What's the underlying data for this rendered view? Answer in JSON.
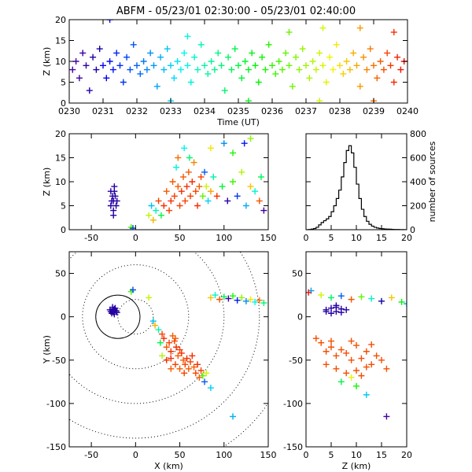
{
  "figure": {
    "title": "ABFM - 05/23/01 02:30:00 - 05/23/01 02:40:00"
  },
  "chart_data": [
    {
      "panel": "time-height",
      "type": "scatter",
      "marker": "+",
      "xlabel": "Time (UT)",
      "ylabel": "Z (km)",
      "xlim": [
        0,
        10
      ],
      "ylim": [
        0,
        20
      ],
      "x_tick_labels": [
        "0230",
        "0231",
        "0232",
        "0233",
        "0234",
        "0235",
        "0236",
        "0237",
        "0238",
        "0239",
        "0240"
      ],
      "y_ticks": [
        0,
        5,
        10,
        15,
        20
      ],
      "color_scale": "time: purple (02:30) to red (02:40)",
      "x_unit": "minutes after 02:30 UT",
      "points": [
        [
          0.1,
          8
        ],
        [
          0.2,
          10
        ],
        [
          0.3,
          6
        ],
        [
          0.4,
          12
        ],
        [
          0.5,
          9
        ],
        [
          0.6,
          3
        ],
        [
          0.7,
          11
        ],
        [
          0.8,
          8
        ],
        [
          0.9,
          13
        ],
        [
          1.0,
          9
        ],
        [
          1.1,
          6
        ],
        [
          1.2,
          10
        ],
        [
          1.3,
          8
        ],
        [
          1.4,
          12
        ],
        [
          1.5,
          9
        ],
        [
          1.6,
          5
        ],
        [
          1.7,
          11
        ],
        [
          1.8,
          8
        ],
        [
          1.9,
          14
        ],
        [
          2.0,
          9
        ],
        [
          2.1,
          7
        ],
        [
          2.2,
          10
        ],
        [
          2.3,
          8
        ],
        [
          2.4,
          12
        ],
        [
          2.5,
          9
        ],
        [
          2.6,
          4
        ],
        [
          2.7,
          11
        ],
        [
          2.8,
          8
        ],
        [
          2.9,
          13
        ],
        [
          3.0,
          9
        ],
        [
          3.1,
          6
        ],
        [
          3.2,
          10
        ],
        [
          3.3,
          8
        ],
        [
          3.4,
          12
        ],
        [
          3.5,
          9
        ],
        [
          3.6,
          5
        ],
        [
          3.7,
          11
        ],
        [
          3.8,
          8
        ],
        [
          3.9,
          14
        ],
        [
          4.0,
          9
        ],
        [
          4.1,
          7
        ],
        [
          4.2,
          10
        ],
        [
          4.3,
          8
        ],
        [
          4.4,
          12
        ],
        [
          4.5,
          9
        ],
        [
          4.6,
          3
        ],
        [
          4.7,
          11
        ],
        [
          4.8,
          8
        ],
        [
          4.9,
          13
        ],
        [
          5.0,
          9
        ],
        [
          5.1,
          6
        ],
        [
          5.2,
          10
        ],
        [
          5.3,
          8
        ],
        [
          5.4,
          12
        ],
        [
          5.5,
          9
        ],
        [
          5.6,
          5
        ],
        [
          5.7,
          11
        ],
        [
          5.8,
          8
        ],
        [
          5.9,
          14
        ],
        [
          6.0,
          9
        ],
        [
          6.1,
          7
        ],
        [
          6.2,
          10
        ],
        [
          6.3,
          8
        ],
        [
          6.4,
          12
        ],
        [
          6.5,
          9
        ],
        [
          6.6,
          4
        ],
        [
          6.7,
          11
        ],
        [
          6.8,
          8
        ],
        [
          6.9,
          13
        ],
        [
          7.0,
          9
        ],
        [
          7.1,
          6
        ],
        [
          7.2,
          10
        ],
        [
          7.3,
          8
        ],
        [
          7.4,
          12
        ],
        [
          7.5,
          9
        ],
        [
          7.6,
          5
        ],
        [
          7.7,
          11
        ],
        [
          7.8,
          8
        ],
        [
          7.9,
          14
        ],
        [
          8.0,
          9
        ],
        [
          8.1,
          7
        ],
        [
          8.2,
          10
        ],
        [
          8.3,
          8
        ],
        [
          8.4,
          12
        ],
        [
          8.5,
          9
        ],
        [
          8.6,
          4
        ],
        [
          8.7,
          11
        ],
        [
          8.8,
          8
        ],
        [
          8.9,
          13
        ],
        [
          9.0,
          9
        ],
        [
          9.1,
          6
        ],
        [
          9.2,
          10
        ],
        [
          9.3,
          8
        ],
        [
          9.4,
          12
        ],
        [
          9.5,
          9
        ],
        [
          9.6,
          5
        ],
        [
          9.7,
          11
        ],
        [
          9.8,
          8
        ],
        [
          9.9,
          10
        ],
        [
          1.2,
          20
        ],
        [
          3.5,
          16
        ],
        [
          6.5,
          17
        ],
        [
          7.5,
          18
        ],
        [
          8.6,
          18
        ],
        [
          9.6,
          17
        ],
        [
          3.0,
          0.5
        ],
        [
          5.3,
          0.5
        ],
        [
          7.4,
          0.5
        ],
        [
          9.0,
          0.5
        ]
      ]
    },
    {
      "panel": "xz",
      "type": "scatter",
      "marker": "+",
      "xlabel": "",
      "ylabel": "Z (km)",
      "xlim": [
        -75,
        150
      ],
      "ylim": [
        0,
        20
      ],
      "x_ticks": [
        -50,
        0,
        50,
        100,
        150
      ],
      "y_ticks": [
        0,
        5,
        10,
        15,
        20
      ],
      "points": [
        [
          -28,
          5
        ],
        [
          -26,
          7
        ],
        [
          -25,
          6
        ],
        [
          -24,
          8
        ],
        [
          -22,
          5
        ],
        [
          -27,
          6
        ],
        [
          -23,
          7
        ],
        [
          -25,
          4
        ],
        [
          -24,
          9
        ],
        [
          -28,
          8
        ],
        [
          -21,
          6
        ],
        [
          -25,
          3
        ],
        [
          -5,
          0.5
        ],
        [
          -3,
          0.3
        ],
        [
          15,
          3
        ],
        [
          18,
          5
        ],
        [
          20,
          2
        ],
        [
          23,
          4
        ],
        [
          26,
          6
        ],
        [
          29,
          3
        ],
        [
          32,
          5
        ],
        [
          35,
          8
        ],
        [
          38,
          4
        ],
        [
          40,
          6
        ],
        [
          42,
          10
        ],
        [
          44,
          7
        ],
        [
          46,
          13
        ],
        [
          48,
          9
        ],
        [
          50,
          5
        ],
        [
          52,
          8
        ],
        [
          54,
          11
        ],
        [
          56,
          6
        ],
        [
          58,
          9
        ],
        [
          60,
          12
        ],
        [
          62,
          7
        ],
        [
          64,
          10
        ],
        [
          66,
          14
        ],
        [
          68,
          8
        ],
        [
          70,
          5
        ],
        [
          72,
          9
        ],
        [
          74,
          11
        ],
        [
          76,
          7
        ],
        [
          78,
          12
        ],
        [
          80,
          9
        ],
        [
          82,
          6
        ],
        [
          85,
          8
        ],
        [
          88,
          11
        ],
        [
          92,
          7
        ],
        [
          98,
          9
        ],
        [
          104,
          6
        ],
        [
          110,
          10
        ],
        [
          115,
          7
        ],
        [
          120,
          12
        ],
        [
          125,
          5
        ],
        [
          130,
          9
        ],
        [
          135,
          8
        ],
        [
          140,
          6
        ],
        [
          142,
          11
        ],
        [
          145,
          4
        ],
        [
          110,
          16
        ],
        [
          123,
          18
        ],
        [
          130,
          19
        ],
        [
          100,
          18
        ],
        [
          85,
          17
        ],
        [
          55,
          17
        ],
        [
          48,
          15
        ],
        [
          61,
          15
        ]
      ]
    },
    {
      "panel": "histogram",
      "type": "bar",
      "xlabel": "",
      "ylabel": "number of sources",
      "xlim": [
        0,
        20
      ],
      "ylim": [
        0,
        800
      ],
      "x_ticks": [
        0,
        5,
        10,
        15,
        20
      ],
      "y_ticks": [
        0,
        200,
        400,
        600,
        800
      ],
      "bin_width": 0.5,
      "values": [
        0,
        2,
        5,
        10,
        20,
        40,
        60,
        75,
        90,
        110,
        150,
        200,
        260,
        330,
        440,
        560,
        660,
        700,
        640,
        520,
        380,
        260,
        170,
        110,
        70,
        45,
        30,
        20,
        14,
        10,
        8,
        6,
        5,
        4,
        3,
        2,
        2,
        1,
        1,
        0
      ]
    },
    {
      "panel": "xy",
      "type": "scatter",
      "marker": "+",
      "xlabel": "X (km)",
      "ylabel": "Y (km)",
      "xlim": [
        -75,
        150
      ],
      "ylim": [
        -150,
        75
      ],
      "x_ticks": [
        -50,
        0,
        50,
        100,
        150
      ],
      "y_ticks": [
        -150,
        -100,
        -50,
        0,
        50
      ],
      "range_rings": [
        {
          "center": [
            0,
            0
          ],
          "radii": [
            20,
            60,
            100,
            140,
            180
          ],
          "style": "dotted"
        },
        {
          "center": [
            -20,
            0
          ],
          "radii": [
            25
          ],
          "style": "solid"
        }
      ],
      "points": [
        [
          -28,
          6
        ],
        [
          -26,
          8
        ],
        [
          -25,
          5
        ],
        [
          -24,
          9
        ],
        [
          -22,
          7
        ],
        [
          -27,
          4
        ],
        [
          -23,
          10
        ],
        [
          -25,
          6
        ],
        [
          -21,
          5
        ],
        [
          -29,
          8
        ],
        [
          -24,
          3
        ],
        [
          -26,
          11
        ],
        [
          -5,
          29
        ],
        [
          -3,
          31
        ],
        [
          15,
          22
        ],
        [
          20,
          -5
        ],
        [
          22,
          -10
        ],
        [
          26,
          -15
        ],
        [
          30,
          -20
        ],
        [
          28,
          -30
        ],
        [
          32,
          -25
        ],
        [
          35,
          -35
        ],
        [
          38,
          -30
        ],
        [
          40,
          -40
        ],
        [
          42,
          -22
        ],
        [
          44,
          -28
        ],
        [
          46,
          -35
        ],
        [
          48,
          -45
        ],
        [
          50,
          -38
        ],
        [
          52,
          -42
        ],
        [
          54,
          -50
        ],
        [
          56,
          -55
        ],
        [
          58,
          -48
        ],
        [
          60,
          -60
        ],
        [
          62,
          -52
        ],
        [
          64,
          -45
        ],
        [
          66,
          -58
        ],
        [
          68,
          -65
        ],
        [
          70,
          -55
        ],
        [
          72,
          -70
        ],
        [
          74,
          -62
        ],
        [
          76,
          -68
        ],
        [
          78,
          -75
        ],
        [
          80,
          -65
        ],
        [
          85,
          -82
        ],
        [
          40,
          -60
        ],
        [
          45,
          -55
        ],
        [
          35,
          -50
        ],
        [
          50,
          -60
        ],
        [
          55,
          -65
        ],
        [
          40,
          -48
        ],
        [
          45,
          -25
        ],
        [
          30,
          -45
        ],
        [
          110,
          -115
        ],
        [
          85,
          22
        ],
        [
          90,
          25
        ],
        [
          95,
          20
        ],
        [
          100,
          23
        ],
        [
          105,
          21
        ],
        [
          110,
          24
        ],
        [
          115,
          19
        ],
        [
          120,
          22
        ],
        [
          125,
          18
        ],
        [
          130,
          20
        ],
        [
          135,
          17
        ],
        [
          140,
          19
        ],
        [
          145,
          16
        ]
      ]
    },
    {
      "panel": "zy",
      "type": "scatter",
      "marker": "+",
      "xlabel": "Z (km)",
      "ylabel": "",
      "xlim": [
        0,
        20
      ],
      "ylim": [
        -150,
        75
      ],
      "x_ticks": [
        0,
        5,
        10,
        15,
        20
      ],
      "y_ticks": [
        -150,
        -100,
        -50,
        0,
        50
      ],
      "points": [
        [
          4,
          8
        ],
        [
          5,
          10
        ],
        [
          6,
          6
        ],
        [
          7,
          9
        ],
        [
          5,
          4
        ],
        [
          6,
          11
        ],
        [
          4,
          6
        ],
        [
          7,
          5
        ],
        [
          8,
          8
        ],
        [
          6,
          13
        ],
        [
          1,
          30
        ],
        [
          0.5,
          28
        ],
        [
          2,
          -25
        ],
        [
          3,
          -30
        ],
        [
          4,
          -40
        ],
        [
          5,
          -35
        ],
        [
          6,
          -45
        ],
        [
          7,
          -38
        ],
        [
          8,
          -42
        ],
        [
          9,
          -50
        ],
        [
          10,
          -33
        ],
        [
          11,
          -48
        ],
        [
          12,
          -40
        ],
        [
          13,
          -55
        ],
        [
          14,
          -45
        ],
        [
          6,
          -60
        ],
        [
          8,
          -65
        ],
        [
          10,
          -62
        ],
        [
          12,
          -58
        ],
        [
          4,
          -55
        ],
        [
          9,
          -70
        ],
        [
          7,
          -75
        ],
        [
          11,
          -68
        ],
        [
          5,
          -28
        ],
        [
          9,
          -28
        ],
        [
          13,
          -32
        ],
        [
          15,
          -50
        ],
        [
          16,
          -60
        ],
        [
          10,
          -80
        ],
        [
          12,
          -90
        ],
        [
          16,
          -115
        ],
        [
          3,
          25
        ],
        [
          5,
          22
        ],
        [
          7,
          24
        ],
        [
          9,
          20
        ],
        [
          11,
          23
        ],
        [
          13,
          21
        ],
        [
          15,
          18
        ],
        [
          17,
          22
        ],
        [
          19,
          17
        ],
        [
          20,
          15
        ]
      ]
    }
  ]
}
